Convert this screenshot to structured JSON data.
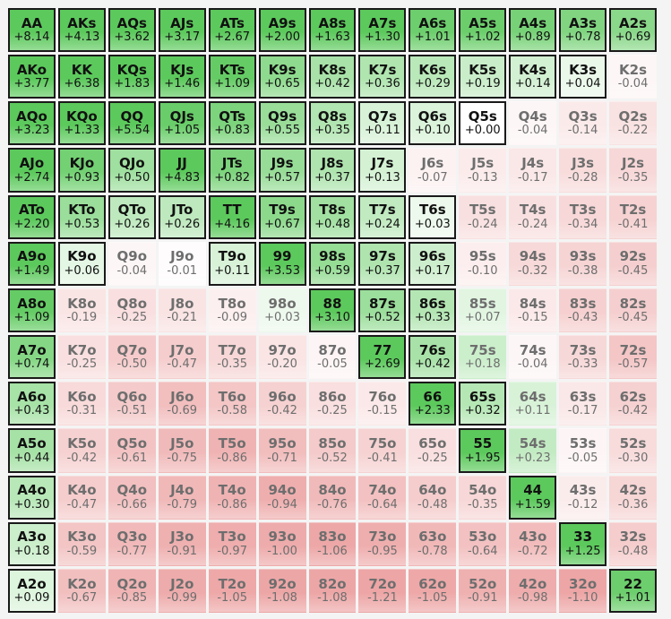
{
  "ranks": [
    "A",
    "K",
    "Q",
    "J",
    "T",
    "9",
    "8",
    "7",
    "6",
    "5",
    "4",
    "3",
    "2"
  ],
  "colors": {
    "positive_max": "#5cc95c",
    "neutral": "#ffffff",
    "negative_max": "#eda5a5"
  },
  "grid": [
    [
      {
        "hand": "AA",
        "ev": "+8.14",
        "played": true
      },
      {
        "hand": "AKs",
        "ev": "+4.13",
        "played": true
      },
      {
        "hand": "AQs",
        "ev": "+3.62",
        "played": true
      },
      {
        "hand": "AJs",
        "ev": "+3.17",
        "played": true
      },
      {
        "hand": "ATs",
        "ev": "+2.67",
        "played": true
      },
      {
        "hand": "A9s",
        "ev": "+2.00",
        "played": true
      },
      {
        "hand": "A8s",
        "ev": "+1.63",
        "played": true
      },
      {
        "hand": "A7s",
        "ev": "+1.30",
        "played": true
      },
      {
        "hand": "A6s",
        "ev": "+1.01",
        "played": true
      },
      {
        "hand": "A5s",
        "ev": "+1.02",
        "played": true
      },
      {
        "hand": "A4s",
        "ev": "+0.89",
        "played": true
      },
      {
        "hand": "A3s",
        "ev": "+0.78",
        "played": true
      },
      {
        "hand": "A2s",
        "ev": "+0.69",
        "played": true
      }
    ],
    [
      {
        "hand": "AKo",
        "ev": "+3.77",
        "played": true
      },
      {
        "hand": "KK",
        "ev": "+6.38",
        "played": true
      },
      {
        "hand": "KQs",
        "ev": "+1.83",
        "played": true
      },
      {
        "hand": "KJs",
        "ev": "+1.46",
        "played": true
      },
      {
        "hand": "KTs",
        "ev": "+1.09",
        "played": true
      },
      {
        "hand": "K9s",
        "ev": "+0.65",
        "played": true
      },
      {
        "hand": "K8s",
        "ev": "+0.42",
        "played": true
      },
      {
        "hand": "K7s",
        "ev": "+0.36",
        "played": true
      },
      {
        "hand": "K6s",
        "ev": "+0.29",
        "played": true
      },
      {
        "hand": "K5s",
        "ev": "+0.19",
        "played": true
      },
      {
        "hand": "K4s",
        "ev": "+0.14",
        "played": true
      },
      {
        "hand": "K3s",
        "ev": "+0.04",
        "played": true
      },
      {
        "hand": "K2s",
        "ev": "-0.04",
        "played": false
      }
    ],
    [
      {
        "hand": "AQo",
        "ev": "+3.23",
        "played": true
      },
      {
        "hand": "KQo",
        "ev": "+1.33",
        "played": true
      },
      {
        "hand": "QQ",
        "ev": "+5.54",
        "played": true
      },
      {
        "hand": "QJs",
        "ev": "+1.05",
        "played": true
      },
      {
        "hand": "QTs",
        "ev": "+0.83",
        "played": true
      },
      {
        "hand": "Q9s",
        "ev": "+0.55",
        "played": true
      },
      {
        "hand": "Q8s",
        "ev": "+0.35",
        "played": true
      },
      {
        "hand": "Q7s",
        "ev": "+0.11",
        "played": true
      },
      {
        "hand": "Q6s",
        "ev": "+0.10",
        "played": true
      },
      {
        "hand": "Q5s",
        "ev": "+0.00",
        "played": true
      },
      {
        "hand": "Q4s",
        "ev": "-0.04",
        "played": false
      },
      {
        "hand": "Q3s",
        "ev": "-0.14",
        "played": false
      },
      {
        "hand": "Q2s",
        "ev": "-0.22",
        "played": false
      }
    ],
    [
      {
        "hand": "AJo",
        "ev": "+2.74",
        "played": true
      },
      {
        "hand": "KJo",
        "ev": "+0.93",
        "played": true
      },
      {
        "hand": "QJo",
        "ev": "+0.50",
        "played": true
      },
      {
        "hand": "JJ",
        "ev": "+4.83",
        "played": true
      },
      {
        "hand": "JTs",
        "ev": "+0.82",
        "played": true
      },
      {
        "hand": "J9s",
        "ev": "+0.57",
        "played": true
      },
      {
        "hand": "J8s",
        "ev": "+0.37",
        "played": true
      },
      {
        "hand": "J7s",
        "ev": "+0.13",
        "played": true
      },
      {
        "hand": "J6s",
        "ev": "-0.07",
        "played": false
      },
      {
        "hand": "J5s",
        "ev": "-0.13",
        "played": false
      },
      {
        "hand": "J4s",
        "ev": "-0.17",
        "played": false
      },
      {
        "hand": "J3s",
        "ev": "-0.28",
        "played": false
      },
      {
        "hand": "J2s",
        "ev": "-0.35",
        "played": false
      }
    ],
    [
      {
        "hand": "ATo",
        "ev": "+2.20",
        "played": true
      },
      {
        "hand": "KTo",
        "ev": "+0.53",
        "played": true
      },
      {
        "hand": "QTo",
        "ev": "+0.26",
        "played": true
      },
      {
        "hand": "JTo",
        "ev": "+0.26",
        "played": true
      },
      {
        "hand": "TT",
        "ev": "+4.16",
        "played": true
      },
      {
        "hand": "T9s",
        "ev": "+0.67",
        "played": true
      },
      {
        "hand": "T8s",
        "ev": "+0.48",
        "played": true
      },
      {
        "hand": "T7s",
        "ev": "+0.24",
        "played": true
      },
      {
        "hand": "T6s",
        "ev": "+0.03",
        "played": true
      },
      {
        "hand": "T5s",
        "ev": "-0.24",
        "played": false
      },
      {
        "hand": "T4s",
        "ev": "-0.24",
        "played": false
      },
      {
        "hand": "T3s",
        "ev": "-0.34",
        "played": false
      },
      {
        "hand": "T2s",
        "ev": "-0.41",
        "played": false
      }
    ],
    [
      {
        "hand": "A9o",
        "ev": "+1.49",
        "played": true
      },
      {
        "hand": "K9o",
        "ev": "+0.06",
        "played": true
      },
      {
        "hand": "Q9o",
        "ev": "-0.04",
        "played": false
      },
      {
        "hand": "J9o",
        "ev": "-0.01",
        "played": false
      },
      {
        "hand": "T9o",
        "ev": "+0.11",
        "played": true
      },
      {
        "hand": "99",
        "ev": "+3.53",
        "played": true
      },
      {
        "hand": "98s",
        "ev": "+0.59",
        "played": true
      },
      {
        "hand": "97s",
        "ev": "+0.37",
        "played": true
      },
      {
        "hand": "96s",
        "ev": "+0.17",
        "played": true
      },
      {
        "hand": "95s",
        "ev": "-0.10",
        "played": false
      },
      {
        "hand": "94s",
        "ev": "-0.32",
        "played": false
      },
      {
        "hand": "93s",
        "ev": "-0.38",
        "played": false
      },
      {
        "hand": "92s",
        "ev": "-0.45",
        "played": false
      }
    ],
    [
      {
        "hand": "A8o",
        "ev": "+1.09",
        "played": true
      },
      {
        "hand": "K8o",
        "ev": "-0.19",
        "played": false
      },
      {
        "hand": "Q8o",
        "ev": "-0.25",
        "played": false
      },
      {
        "hand": "J8o",
        "ev": "-0.21",
        "played": false
      },
      {
        "hand": "T8o",
        "ev": "-0.09",
        "played": false
      },
      {
        "hand": "98o",
        "ev": "+0.03",
        "played": false
      },
      {
        "hand": "88",
        "ev": "+3.10",
        "played": true
      },
      {
        "hand": "87s",
        "ev": "+0.52",
        "played": true
      },
      {
        "hand": "86s",
        "ev": "+0.33",
        "played": true
      },
      {
        "hand": "85s",
        "ev": "+0.07",
        "played": false
      },
      {
        "hand": "84s",
        "ev": "-0.15",
        "played": false
      },
      {
        "hand": "83s",
        "ev": "-0.43",
        "played": false
      },
      {
        "hand": "82s",
        "ev": "-0.45",
        "played": false
      }
    ],
    [
      {
        "hand": "A7o",
        "ev": "+0.74",
        "played": true
      },
      {
        "hand": "K7o",
        "ev": "-0.25",
        "played": false
      },
      {
        "hand": "Q7o",
        "ev": "-0.50",
        "played": false
      },
      {
        "hand": "J7o",
        "ev": "-0.47",
        "played": false
      },
      {
        "hand": "T7o",
        "ev": "-0.35",
        "played": false
      },
      {
        "hand": "97o",
        "ev": "-0.20",
        "played": false
      },
      {
        "hand": "87o",
        "ev": "-0.05",
        "played": false
      },
      {
        "hand": "77",
        "ev": "+2.69",
        "played": true
      },
      {
        "hand": "76s",
        "ev": "+0.42",
        "played": true
      },
      {
        "hand": "75s",
        "ev": "+0.18",
        "played": false
      },
      {
        "hand": "74s",
        "ev": "-0.04",
        "played": false
      },
      {
        "hand": "73s",
        "ev": "-0.33",
        "played": false
      },
      {
        "hand": "72s",
        "ev": "-0.57",
        "played": false
      }
    ],
    [
      {
        "hand": "A6o",
        "ev": "+0.43",
        "played": true
      },
      {
        "hand": "K6o",
        "ev": "-0.31",
        "played": false
      },
      {
        "hand": "Q6o",
        "ev": "-0.51",
        "played": false
      },
      {
        "hand": "J6o",
        "ev": "-0.69",
        "played": false
      },
      {
        "hand": "T6o",
        "ev": "-0.58",
        "played": false
      },
      {
        "hand": "96o",
        "ev": "-0.42",
        "played": false
      },
      {
        "hand": "86o",
        "ev": "-0.25",
        "played": false
      },
      {
        "hand": "76o",
        "ev": "-0.15",
        "played": false
      },
      {
        "hand": "66",
        "ev": "+2.33",
        "played": true
      },
      {
        "hand": "65s",
        "ev": "+0.32",
        "played": true
      },
      {
        "hand": "64s",
        "ev": "+0.11",
        "played": false
      },
      {
        "hand": "63s",
        "ev": "-0.17",
        "played": false
      },
      {
        "hand": "62s",
        "ev": "-0.42",
        "played": false
      }
    ],
    [
      {
        "hand": "A5o",
        "ev": "+0.44",
        "played": true
      },
      {
        "hand": "K5o",
        "ev": "-0.42",
        "played": false
      },
      {
        "hand": "Q5o",
        "ev": "-0.61",
        "played": false
      },
      {
        "hand": "J5o",
        "ev": "-0.75",
        "played": false
      },
      {
        "hand": "T5o",
        "ev": "-0.86",
        "played": false
      },
      {
        "hand": "95o",
        "ev": "-0.71",
        "played": false
      },
      {
        "hand": "85o",
        "ev": "-0.52",
        "played": false
      },
      {
        "hand": "75o",
        "ev": "-0.41",
        "played": false
      },
      {
        "hand": "65o",
        "ev": "-0.25",
        "played": false
      },
      {
        "hand": "55",
        "ev": "+1.95",
        "played": true
      },
      {
        "hand": "54s",
        "ev": "+0.23",
        "played": false
      },
      {
        "hand": "53s",
        "ev": "-0.05",
        "played": false
      },
      {
        "hand": "52s",
        "ev": "-0.30",
        "played": false
      }
    ],
    [
      {
        "hand": "A4o",
        "ev": "+0.30",
        "played": true
      },
      {
        "hand": "K4o",
        "ev": "-0.47",
        "played": false
      },
      {
        "hand": "Q4o",
        "ev": "-0.66",
        "played": false
      },
      {
        "hand": "J4o",
        "ev": "-0.79",
        "played": false
      },
      {
        "hand": "T4o",
        "ev": "-0.86",
        "played": false
      },
      {
        "hand": "94o",
        "ev": "-0.94",
        "played": false
      },
      {
        "hand": "84o",
        "ev": "-0.76",
        "played": false
      },
      {
        "hand": "74o",
        "ev": "-0.64",
        "played": false
      },
      {
        "hand": "64o",
        "ev": "-0.48",
        "played": false
      },
      {
        "hand": "54o",
        "ev": "-0.35",
        "played": false
      },
      {
        "hand": "44",
        "ev": "+1.59",
        "played": true
      },
      {
        "hand": "43s",
        "ev": "-0.12",
        "played": false
      },
      {
        "hand": "42s",
        "ev": "-0.36",
        "played": false
      }
    ],
    [
      {
        "hand": "A3o",
        "ev": "+0.18",
        "played": true
      },
      {
        "hand": "K3o",
        "ev": "-0.59",
        "played": false
      },
      {
        "hand": "Q3o",
        "ev": "-0.77",
        "played": false
      },
      {
        "hand": "J3o",
        "ev": "-0.91",
        "played": false
      },
      {
        "hand": "T3o",
        "ev": "-0.97",
        "played": false
      },
      {
        "hand": "93o",
        "ev": "-1.00",
        "played": false
      },
      {
        "hand": "83o",
        "ev": "-1.06",
        "played": false
      },
      {
        "hand": "73o",
        "ev": "-0.95",
        "played": false
      },
      {
        "hand": "63o",
        "ev": "-0.78",
        "played": false
      },
      {
        "hand": "53o",
        "ev": "-0.64",
        "played": false
      },
      {
        "hand": "43o",
        "ev": "-0.72",
        "played": false
      },
      {
        "hand": "33",
        "ev": "+1.25",
        "played": true
      },
      {
        "hand": "32s",
        "ev": "-0.48",
        "played": false
      }
    ],
    [
      {
        "hand": "A2o",
        "ev": "+0.09",
        "played": true
      },
      {
        "hand": "K2o",
        "ev": "-0.67",
        "played": false
      },
      {
        "hand": "Q2o",
        "ev": "-0.85",
        "played": false
      },
      {
        "hand": "J2o",
        "ev": "-0.99",
        "played": false
      },
      {
        "hand": "T2o",
        "ev": "-1.05",
        "played": false
      },
      {
        "hand": "92o",
        "ev": "-1.08",
        "played": false
      },
      {
        "hand": "82o",
        "ev": "-1.08",
        "played": false
      },
      {
        "hand": "72o",
        "ev": "-1.21",
        "played": false
      },
      {
        "hand": "62o",
        "ev": "-1.05",
        "played": false
      },
      {
        "hand": "52o",
        "ev": "-0.91",
        "played": false
      },
      {
        "hand": "42o",
        "ev": "-0.98",
        "played": false
      },
      {
        "hand": "32o",
        "ev": "-1.10",
        "played": false
      },
      {
        "hand": "22",
        "ev": "+1.01",
        "played": true
      }
    ]
  ]
}
